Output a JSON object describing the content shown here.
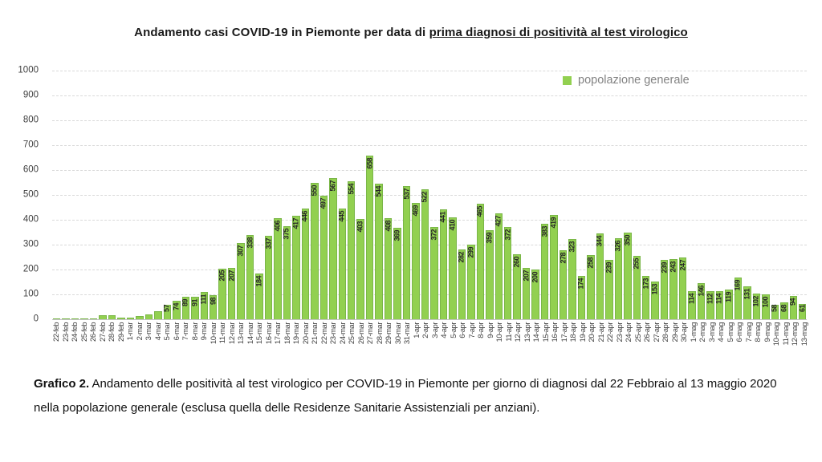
{
  "title": {
    "prefix": "Andamento casi COVID-19 in Piemonte per data di ",
    "underlined": "prima diagnosi di positività al test virologico"
  },
  "legend": {
    "label": "popolazione generale",
    "swatch_color": "#92d050"
  },
  "caption": {
    "bold": "Grafico 2.",
    "text": " Andamento delle positività al test virologico per COVID-19 in Piemonte per giorno di diagnosi dal 22 Febbraio al 13 maggio 2020 nella popolazione generale (esclusa quella delle Residenze Sanitarie Assistenziali per anziani)."
  },
  "chart_data": {
    "type": "bar",
    "title": "Andamento casi COVID-19 in Piemonte per data di prima diagnosi di positività al test virologico",
    "series_name": "popolazione generale",
    "bar_color": "#92d050",
    "grid": "horizontal-dashed",
    "legend_position": "top-right-inside",
    "ylim": [
      0,
      1000
    ],
    "ytick_interval": 100,
    "value_labels_start_index": 12,
    "categories": [
      "22-feb",
      "23-feb",
      "24-feb",
      "25-feb",
      "26-feb",
      "27-feb",
      "28-feb",
      "29-feb",
      "1-mar",
      "2-mar",
      "3-mar",
      "4-mar",
      "5-mar",
      "6-mar",
      "7-mar",
      "8-mar",
      "9-mar",
      "10-mar",
      "11-mar",
      "12-mar",
      "13-mar",
      "14-mar",
      "15-mar",
      "16-mar",
      "17-mar",
      "18-mar",
      "19-mar",
      "20-mar",
      "21-mar",
      "22-mar",
      "23-mar",
      "24-mar",
      "25-mar",
      "26-mar",
      "27-mar",
      "28-mar",
      "29-mar",
      "30-mar",
      "31-mar",
      "1-apr",
      "2-apr",
      "3-apr",
      "4-apr",
      "5-apr",
      "6-apr",
      "7-apr",
      "8-apr",
      "9-apr",
      "10-apr",
      "11-apr",
      "12-apr",
      "13-apr",
      "14-apr",
      "15-apr",
      "16-apr",
      "17-apr",
      "18-apr",
      "19-apr",
      "20-apr",
      "21-apr",
      "22-apr",
      "23-apr",
      "24-apr",
      "25-apr",
      "26-apr",
      "27-apr",
      "28-apr",
      "29-apr",
      "30-apr",
      "1-mag",
      "2-mag",
      "3-mag",
      "4-mag",
      "5-mag",
      "6-mag",
      "7-mag",
      "8-mag",
      "9-mag",
      "10-mag",
      "11-mag",
      "12-mag",
      "13-mag"
    ],
    "values": [
      1,
      1,
      2,
      3,
      3,
      15,
      16,
      7,
      5,
      13,
      20,
      32,
      57,
      74,
      89,
      91,
      111,
      98,
      205,
      207,
      307,
      338,
      184,
      337,
      406,
      375,
      417,
      446,
      550,
      497,
      567,
      445,
      554,
      403,
      658,
      544,
      408,
      369,
      537,
      469,
      522,
      372,
      441,
      410,
      282,
      299,
      465,
      359,
      427,
      372,
      260,
      207,
      200,
      383,
      419,
      278,
      323,
      174,
      258,
      344,
      239,
      326,
      350,
      255,
      173,
      153,
      239,
      243,
      247,
      114,
      146,
      112,
      114,
      119,
      169,
      131,
      102,
      100,
      58,
      68,
      94,
      61
    ]
  }
}
